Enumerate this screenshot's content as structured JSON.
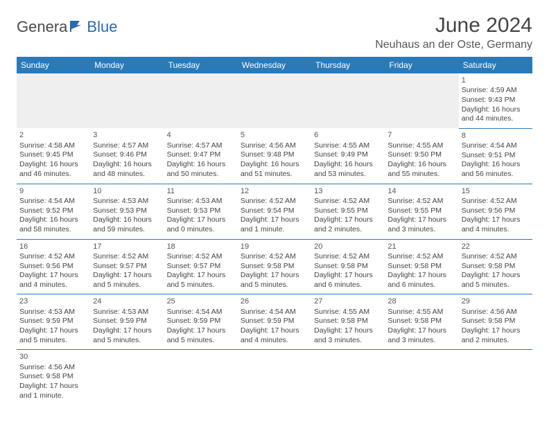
{
  "logo": {
    "part1": "Genera",
    "part2": "Blue"
  },
  "title": "June 2024",
  "location": "Neuhaus an der Oste, Germany",
  "colors": {
    "header_bg": "#2a7ab8",
    "header_text": "#ffffff",
    "border": "#2a7ab8",
    "blank_bg": "#efefef",
    "text": "#444444"
  },
  "day_headers": [
    "Sunday",
    "Monday",
    "Tuesday",
    "Wednesday",
    "Thursday",
    "Friday",
    "Saturday"
  ],
  "weeks": [
    [
      null,
      null,
      null,
      null,
      null,
      null,
      {
        "n": "1",
        "sr": "Sunrise: 4:59 AM",
        "ss": "Sunset: 9:43 PM",
        "dl": "Daylight: 16 hours and 44 minutes."
      }
    ],
    [
      {
        "n": "2",
        "sr": "Sunrise: 4:58 AM",
        "ss": "Sunset: 9:45 PM",
        "dl": "Daylight: 16 hours and 46 minutes."
      },
      {
        "n": "3",
        "sr": "Sunrise: 4:57 AM",
        "ss": "Sunset: 9:46 PM",
        "dl": "Daylight: 16 hours and 48 minutes."
      },
      {
        "n": "4",
        "sr": "Sunrise: 4:57 AM",
        "ss": "Sunset: 9:47 PM",
        "dl": "Daylight: 16 hours and 50 minutes."
      },
      {
        "n": "5",
        "sr": "Sunrise: 4:56 AM",
        "ss": "Sunset: 9:48 PM",
        "dl": "Daylight: 16 hours and 51 minutes."
      },
      {
        "n": "6",
        "sr": "Sunrise: 4:55 AM",
        "ss": "Sunset: 9:49 PM",
        "dl": "Daylight: 16 hours and 53 minutes."
      },
      {
        "n": "7",
        "sr": "Sunrise: 4:55 AM",
        "ss": "Sunset: 9:50 PM",
        "dl": "Daylight: 16 hours and 55 minutes."
      },
      {
        "n": "8",
        "sr": "Sunrise: 4:54 AM",
        "ss": "Sunset: 9:51 PM",
        "dl": "Daylight: 16 hours and 56 minutes."
      }
    ],
    [
      {
        "n": "9",
        "sr": "Sunrise: 4:54 AM",
        "ss": "Sunset: 9:52 PM",
        "dl": "Daylight: 16 hours and 58 minutes."
      },
      {
        "n": "10",
        "sr": "Sunrise: 4:53 AM",
        "ss": "Sunset: 9:53 PM",
        "dl": "Daylight: 16 hours and 59 minutes."
      },
      {
        "n": "11",
        "sr": "Sunrise: 4:53 AM",
        "ss": "Sunset: 9:53 PM",
        "dl": "Daylight: 17 hours and 0 minutes."
      },
      {
        "n": "12",
        "sr": "Sunrise: 4:52 AM",
        "ss": "Sunset: 9:54 PM",
        "dl": "Daylight: 17 hours and 1 minute."
      },
      {
        "n": "13",
        "sr": "Sunrise: 4:52 AM",
        "ss": "Sunset: 9:55 PM",
        "dl": "Daylight: 17 hours and 2 minutes."
      },
      {
        "n": "14",
        "sr": "Sunrise: 4:52 AM",
        "ss": "Sunset: 9:55 PM",
        "dl": "Daylight: 17 hours and 3 minutes."
      },
      {
        "n": "15",
        "sr": "Sunrise: 4:52 AM",
        "ss": "Sunset: 9:56 PM",
        "dl": "Daylight: 17 hours and 4 minutes."
      }
    ],
    [
      {
        "n": "16",
        "sr": "Sunrise: 4:52 AM",
        "ss": "Sunset: 9:56 PM",
        "dl": "Daylight: 17 hours and 4 minutes."
      },
      {
        "n": "17",
        "sr": "Sunrise: 4:52 AM",
        "ss": "Sunset: 9:57 PM",
        "dl": "Daylight: 17 hours and 5 minutes."
      },
      {
        "n": "18",
        "sr": "Sunrise: 4:52 AM",
        "ss": "Sunset: 9:57 PM",
        "dl": "Daylight: 17 hours and 5 minutes."
      },
      {
        "n": "19",
        "sr": "Sunrise: 4:52 AM",
        "ss": "Sunset: 9:58 PM",
        "dl": "Daylight: 17 hours and 5 minutes."
      },
      {
        "n": "20",
        "sr": "Sunrise: 4:52 AM",
        "ss": "Sunset: 9:58 PM",
        "dl": "Daylight: 17 hours and 6 minutes."
      },
      {
        "n": "21",
        "sr": "Sunrise: 4:52 AM",
        "ss": "Sunset: 9:58 PM",
        "dl": "Daylight: 17 hours and 6 minutes."
      },
      {
        "n": "22",
        "sr": "Sunrise: 4:52 AM",
        "ss": "Sunset: 9:58 PM",
        "dl": "Daylight: 17 hours and 5 minutes."
      }
    ],
    [
      {
        "n": "23",
        "sr": "Sunrise: 4:53 AM",
        "ss": "Sunset: 9:59 PM",
        "dl": "Daylight: 17 hours and 5 minutes."
      },
      {
        "n": "24",
        "sr": "Sunrise: 4:53 AM",
        "ss": "Sunset: 9:59 PM",
        "dl": "Daylight: 17 hours and 5 minutes."
      },
      {
        "n": "25",
        "sr": "Sunrise: 4:54 AM",
        "ss": "Sunset: 9:59 PM",
        "dl": "Daylight: 17 hours and 5 minutes."
      },
      {
        "n": "26",
        "sr": "Sunrise: 4:54 AM",
        "ss": "Sunset: 9:59 PM",
        "dl": "Daylight: 17 hours and 4 minutes."
      },
      {
        "n": "27",
        "sr": "Sunrise: 4:55 AM",
        "ss": "Sunset: 9:58 PM",
        "dl": "Daylight: 17 hours and 3 minutes."
      },
      {
        "n": "28",
        "sr": "Sunrise: 4:55 AM",
        "ss": "Sunset: 9:58 PM",
        "dl": "Daylight: 17 hours and 3 minutes."
      },
      {
        "n": "29",
        "sr": "Sunrise: 4:56 AM",
        "ss": "Sunset: 9:58 PM",
        "dl": "Daylight: 17 hours and 2 minutes."
      }
    ],
    [
      {
        "n": "30",
        "sr": "Sunrise: 4:56 AM",
        "ss": "Sunset: 9:58 PM",
        "dl": "Daylight: 17 hours and 1 minute."
      },
      null,
      null,
      null,
      null,
      null,
      null
    ]
  ]
}
